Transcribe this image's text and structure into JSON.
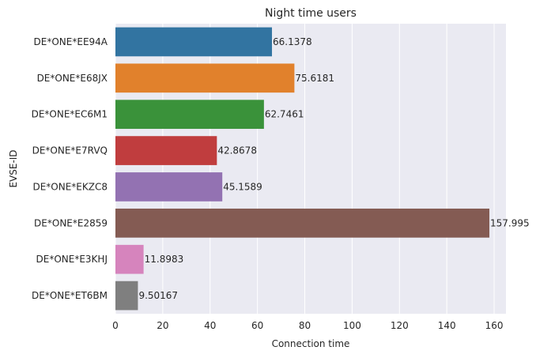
{
  "chart_data": {
    "type": "bar",
    "orientation": "horizontal",
    "title": "Night time users",
    "xlabel": "Connection time",
    "ylabel": "EVSE-ID",
    "xlim": [
      0,
      165
    ],
    "xticks": [
      0,
      20,
      40,
      60,
      80,
      100,
      120,
      140,
      160
    ],
    "grid": true,
    "categories": [
      "DE*ONE*EE94A",
      "DE*ONE*E68JX",
      "DE*ONE*EC6M1",
      "DE*ONE*E7RVQ",
      "DE*ONE*EKZC8",
      "DE*ONE*E2859",
      "DE*ONE*E3KHJ",
      "DE*ONE*ET6BM"
    ],
    "values": [
      66.1378,
      75.6181,
      62.7461,
      42.8678,
      45.1589,
      157.995,
      11.8983,
      9.50167
    ],
    "value_labels": [
      "66.1378",
      "75.6181",
      "62.7461",
      "42.8678",
      "45.1589",
      "157.995",
      "11.8983",
      "9.50167"
    ],
    "colors": [
      "#3274a1",
      "#e1812c",
      "#3a923a",
      "#c03d3e",
      "#9372b2",
      "#845b53",
      "#d684bd",
      "#7f7f7f"
    ],
    "background": "#eaeaf2",
    "grid_color": "#ffffff"
  }
}
